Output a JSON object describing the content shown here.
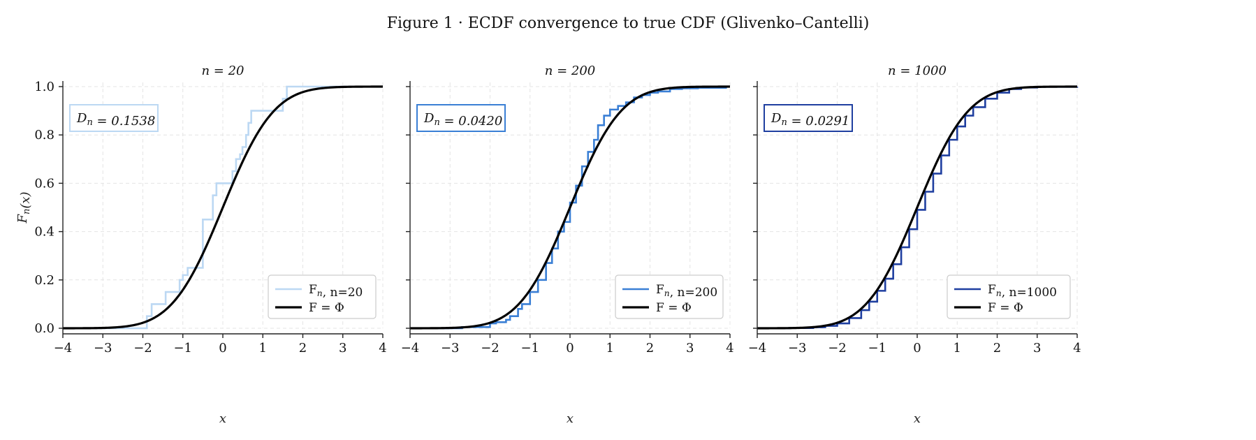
{
  "figure": {
    "title": "Figure 1 · ECDF convergence to true CDF (Glivenko–Cantelli)"
  },
  "chart_data": [
    {
      "type": "line",
      "title": "n = 20",
      "xlabel": "x",
      "ylabel": "F_n(x)",
      "xlim": [
        -4,
        4
      ],
      "ylim": [
        0,
        1
      ],
      "xticks": [
        "−4",
        "−3",
        "−2",
        "−1",
        "0",
        "1",
        "2",
        "3",
        "4"
      ],
      "yticks": [
        "0.0",
        "0.2",
        "0.4",
        "0.6",
        "0.8",
        "1.0"
      ],
      "grid": true,
      "legend_position": "bottom-right",
      "stat_box": "D_n = 0.1538",
      "ecdf_color": "#bcd8f3",
      "series": [
        {
          "name": "F_n, n=20",
          "kind": "step",
          "color": "#bcd8f3",
          "x": [
            -4,
            -1.9,
            -1.78,
            -1.43,
            -1.08,
            -1.0,
            -0.88,
            -0.5,
            -0.25,
            -0.16,
            0.24,
            0.33,
            0.43,
            0.49,
            0.58,
            0.64,
            0.71,
            1.5,
            1.6,
            2.4,
            4
          ],
          "y": [
            0,
            0.05,
            0.1,
            0.15,
            0.2,
            0.22,
            0.25,
            0.45,
            0.55,
            0.6,
            0.65,
            0.7,
            0.72,
            0.75,
            0.8,
            0.85,
            0.9,
            0.95,
            1.0,
            1.0,
            1.0
          ]
        },
        {
          "name": "F = Φ",
          "kind": "cdf",
          "color": "#000000"
        }
      ]
    },
    {
      "type": "line",
      "title": "n = 200",
      "xlabel": "x",
      "ylabel": "",
      "xlim": [
        -4,
        4
      ],
      "ylim": [
        0,
        1
      ],
      "xticks": [
        "−4",
        "−3",
        "−2",
        "−1",
        "0",
        "1",
        "2",
        "3",
        "4"
      ],
      "yticks": [
        "",
        "",
        "",
        "",
        "",
        ""
      ],
      "grid": true,
      "legend_position": "bottom-right",
      "stat_box": "D_n = 0.0420",
      "ecdf_color": "#3a7fd5",
      "series": [
        {
          "name": "F_n, n=200",
          "kind": "step",
          "color": "#3a7fd5",
          "x": [
            -4,
            -2.7,
            -2.0,
            -1.85,
            -1.6,
            -1.5,
            -1.3,
            -1.2,
            -1.0,
            -0.8,
            -0.6,
            -0.45,
            -0.3,
            -0.15,
            0,
            0.15,
            0.3,
            0.45,
            0.6,
            0.7,
            0.85,
            1.0,
            1.2,
            1.4,
            1.6,
            1.8,
            2.0,
            2.2,
            2.5,
            2.8,
            3.2,
            3.9
          ],
          "y": [
            0,
            0.005,
            0.02,
            0.025,
            0.035,
            0.05,
            0.08,
            0.1,
            0.15,
            0.2,
            0.27,
            0.33,
            0.4,
            0.44,
            0.52,
            0.59,
            0.67,
            0.73,
            0.78,
            0.84,
            0.88,
            0.905,
            0.92,
            0.935,
            0.955,
            0.965,
            0.975,
            0.98,
            0.99,
            0.993,
            0.995,
            1.0
          ]
        },
        {
          "name": "F = Φ",
          "kind": "cdf",
          "color": "#000000"
        }
      ]
    },
    {
      "type": "line",
      "title": "n = 1000",
      "xlabel": "x",
      "ylabel": "",
      "xlim": [
        -4,
        4
      ],
      "ylim": [
        0,
        1
      ],
      "xticks": [
        "−4",
        "−3",
        "−2",
        "−1",
        "0",
        "1",
        "2",
        "3",
        "4"
      ],
      "yticks": [
        "",
        "",
        "",
        "",
        "",
        ""
      ],
      "grid": true,
      "legend_position": "bottom-right",
      "stat_box": "D_n = 0.0291",
      "ecdf_color": "#1f3fa0",
      "series": [
        {
          "name": "F_n, n=1000",
          "kind": "step",
          "color": "#1f3fa0",
          "x": [
            -4,
            -3.2,
            -2.6,
            -2.3,
            -2.0,
            -1.7,
            -1.4,
            -1.2,
            -1.0,
            -0.8,
            -0.6,
            -0.4,
            -0.2,
            0,
            0.2,
            0.4,
            0.6,
            0.8,
            1.0,
            1.2,
            1.4,
            1.7,
            2.0,
            2.3,
            2.6,
            3.0,
            4.0
          ],
          "y": [
            0,
            0.001,
            0.004,
            0.01,
            0.02,
            0.042,
            0.075,
            0.11,
            0.155,
            0.205,
            0.265,
            0.335,
            0.41,
            0.49,
            0.565,
            0.64,
            0.715,
            0.78,
            0.835,
            0.88,
            0.915,
            0.95,
            0.975,
            0.99,
            0.996,
            0.999,
            1.0
          ]
        },
        {
          "name": "F = Φ",
          "kind": "cdf",
          "color": "#000000"
        }
      ]
    }
  ]
}
